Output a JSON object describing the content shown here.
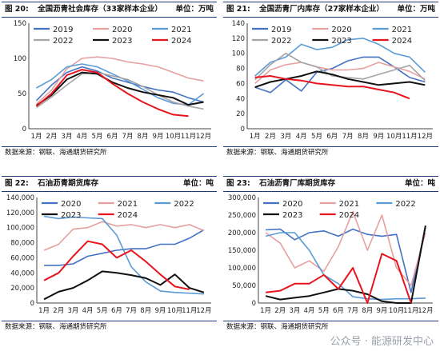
{
  "chart_data": [
    {
      "type": "line",
      "figure_label": "图 20:",
      "title": "全国沥青社会库存（33家样本企业）",
      "unit": "单位：万吨",
      "source": "数据来源：钢联、海通期货研究所",
      "categories": [
        "1月",
        "2月",
        "3月",
        "4月",
        "5月",
        "6月",
        "7月",
        "8月",
        "9月",
        "10月",
        "11月",
        "12月"
      ],
      "ylim": [
        0,
        150
      ],
      "yticks": [
        "0",
        "50",
        "100",
        "150"
      ],
      "series": [
        {
          "name": "2019",
          "color": "#4472c4",
          "values": [
            40,
            62,
            80,
            88,
            82,
            72,
            66,
            60,
            55,
            52,
            44,
            38
          ]
        },
        {
          "name": "2020",
          "color": "#e6a0a0",
          "values": [
            35,
            55,
            85,
            100,
            102,
            100,
            95,
            92,
            88,
            80,
            72,
            68
          ]
        },
        {
          "name": "2021",
          "color": "#5b9bd5",
          "values": [
            58,
            70,
            88,
            92,
            88,
            78,
            68,
            56,
            44,
            36,
            34,
            50
          ]
        },
        {
          "name": "2022",
          "color": "#a5a5a5",
          "values": [
            30,
            45,
            62,
            78,
            80,
            75,
            70,
            60,
            48,
            38,
            32,
            28
          ]
        },
        {
          "name": "2023",
          "color": "#111111",
          "values": [
            33,
            48,
            70,
            80,
            78,
            66,
            58,
            52,
            48,
            44,
            34,
            38
          ]
        },
        {
          "name": "2024",
          "color": "#e8141e",
          "values": [
            32,
            50,
            76,
            84,
            80,
            64,
            50,
            38,
            28,
            20,
            18,
            null
          ]
        }
      ]
    },
    {
      "type": "line",
      "figure_label": "图 21:",
      "title": "全国沥青厂内库存（27家样本企业）",
      "unit": "单位：万吨",
      "source": "数据来源：钢联、海通期货研究所",
      "categories": [
        "1月",
        "2月",
        "3月",
        "4月",
        "5月",
        "6月",
        "7月",
        "8月",
        "9月",
        "10月",
        "11月",
        "12月"
      ],
      "ylim": [
        0,
        140
      ],
      "yticks": [
        "0",
        "20",
        "40",
        "60",
        "80",
        "100",
        "120",
        "140"
      ],
      "series": [
        {
          "name": "2019",
          "color": "#4472c4",
          "values": [
            55,
            48,
            65,
            50,
            75,
            80,
            90,
            95,
            95,
            82,
            68,
            62
          ]
        },
        {
          "name": "2020",
          "color": "#e6a0a0",
          "values": [
            60,
            78,
            85,
            88,
            82,
            78,
            78,
            80,
            88,
            82,
            76,
            66
          ]
        },
        {
          "name": "2021",
          "color": "#5b9bd5",
          "values": [
            70,
            88,
            95,
            112,
            105,
            108,
            118,
            120,
            112,
            100,
            95,
            75
          ]
        },
        {
          "name": "2022",
          "color": "#a5a5a5",
          "values": [
            65,
            85,
            100,
            88,
            82,
            70,
            68,
            66,
            72,
            78,
            84,
            64
          ]
        },
        {
          "name": "2023",
          "color": "#111111",
          "values": [
            55,
            62,
            66,
            70,
            76,
            72,
            66,
            62,
            58,
            60,
            62,
            58
          ]
        },
        {
          "name": "2024",
          "color": "#e8141e",
          "values": [
            68,
            70,
            66,
            64,
            60,
            58,
            56,
            56,
            52,
            48,
            40,
            null
          ]
        }
      ]
    },
    {
      "type": "line",
      "figure_label": "图 22:",
      "title": "石油沥青期货库存",
      "unit": "单位：吨",
      "source": "数据来源：钢联、海通期货研究所",
      "categories": [
        "1月",
        "2月",
        "3月",
        "4月",
        "5月",
        "6月",
        "7月",
        "8月",
        "9月",
        "10月",
        "11月",
        "12月"
      ],
      "ylim": [
        0,
        140000
      ],
      "yticks": [
        "0",
        "20,000",
        "40,000",
        "60,000",
        "80,000",
        "100,000",
        "120,000",
        "140,000"
      ],
      "series": [
        {
          "name": "2020",
          "color": "#4472c4",
          "values": [
            50000,
            50000,
            52000,
            62000,
            66000,
            70000,
            72000,
            72000,
            78000,
            78000,
            86000,
            97000
          ]
        },
        {
          "name": "2021",
          "color": "#e6a0a0",
          "values": [
            70000,
            78000,
            98000,
            100000,
            108000,
            102000,
            104000,
            100000,
            104000,
            100000,
            104000,
            96000
          ]
        },
        {
          "name": "2022",
          "color": "#5b9bd5",
          "values": [
            115000,
            112000,
            114000,
            113000,
            112000,
            90000,
            48000,
            28000,
            16000,
            14000,
            13000,
            12000
          ]
        },
        {
          "name": "2023",
          "color": "#111111",
          "values": [
            5000,
            15000,
            20000,
            30000,
            42000,
            40000,
            37000,
            33000,
            24000,
            38000,
            20000,
            14000
          ]
        },
        {
          "name": "2024",
          "color": "#e8141e",
          "values": [
            30000,
            40000,
            62000,
            82000,
            78000,
            60000,
            70000,
            55000,
            38000,
            22000,
            18000,
            null
          ]
        }
      ]
    },
    {
      "type": "line",
      "figure_label": "图 23:",
      "title": "石油沥青厂库期货库存",
      "unit": "单位：吨",
      "source": "数据来源：钢联、海通期货研究所",
      "categories": [
        "1月",
        "2月",
        "3月",
        "4月",
        "5月",
        "6月",
        "7月",
        "8月",
        "9月",
        "10月",
        "11月",
        "12月"
      ],
      "ylim": [
        0,
        300000
      ],
      "yticks": [
        "0",
        "50,000",
        "100,000",
        "150,000",
        "200,000",
        "250,000",
        "300,000"
      ],
      "series": [
        {
          "name": "2020",
          "color": "#4472c4",
          "values": [
            208000,
            210000,
            180000,
            200000,
            205000,
            190000,
            210000,
            195000,
            190000,
            195000,
            30000,
            215000
          ]
        },
        {
          "name": "2021",
          "color": "#e6a0a0",
          "values": [
            200000,
            170000,
            100000,
            120000,
            90000,
            160000,
            260000,
            150000,
            250000,
            100000,
            50000,
            200000
          ]
        },
        {
          "name": "2022",
          "color": "#5b9bd5",
          "values": [
            190000,
            200000,
            200000,
            150000,
            80000,
            55000,
            18000,
            12000,
            10000,
            12000,
            12000,
            14000
          ]
        },
        {
          "name": "2023",
          "color": "#111111",
          "values": [
            20000,
            10000,
            15000,
            20000,
            30000,
            40000,
            35000,
            25000,
            5000,
            0,
            0,
            220000
          ]
        },
        {
          "name": "2024",
          "color": "#e8141e",
          "values": [
            30000,
            35000,
            55000,
            55000,
            80000,
            40000,
            100000,
            0,
            140000,
            120000,
            0,
            null
          ]
        }
      ]
    }
  ],
  "watermark": "公众号 · 能源研发中心"
}
